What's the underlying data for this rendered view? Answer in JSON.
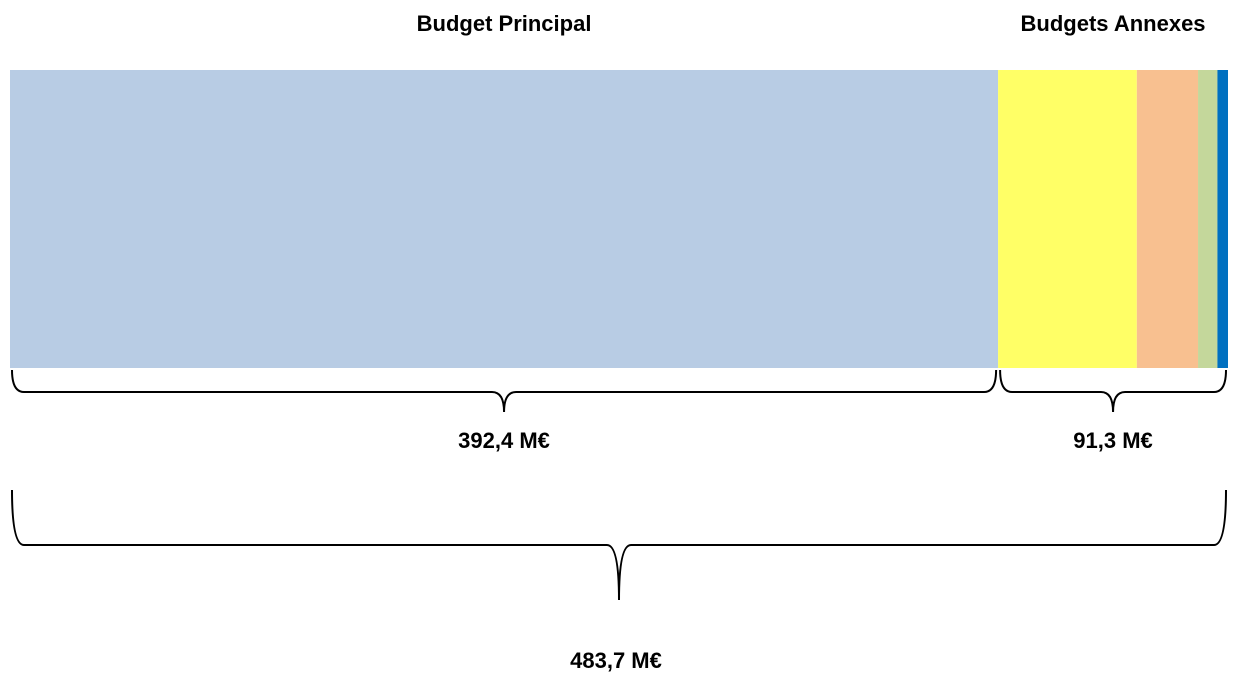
{
  "chart_data": {
    "type": "stacked-bar",
    "groups": [
      {
        "title": "Budget Principal",
        "value": 392.4,
        "value_label": "392,4 M€",
        "segments": [
          {
            "color": "#b8cce4",
            "value": 392.4
          }
        ]
      },
      {
        "title": "Budgets Annexes",
        "value": 91.3,
        "value_label": "91,3 M€",
        "segments": [
          {
            "color": "#ffff66",
            "value": 55.1
          },
          {
            "color": "#f8c090",
            "value": 24.3
          },
          {
            "color": "#c4d79b",
            "value": 7.7
          },
          {
            "color": "#0070c0",
            "value": 4.2
          }
        ]
      }
    ],
    "total": {
      "value": 483.7,
      "value_label": "483,7 M€"
    }
  }
}
